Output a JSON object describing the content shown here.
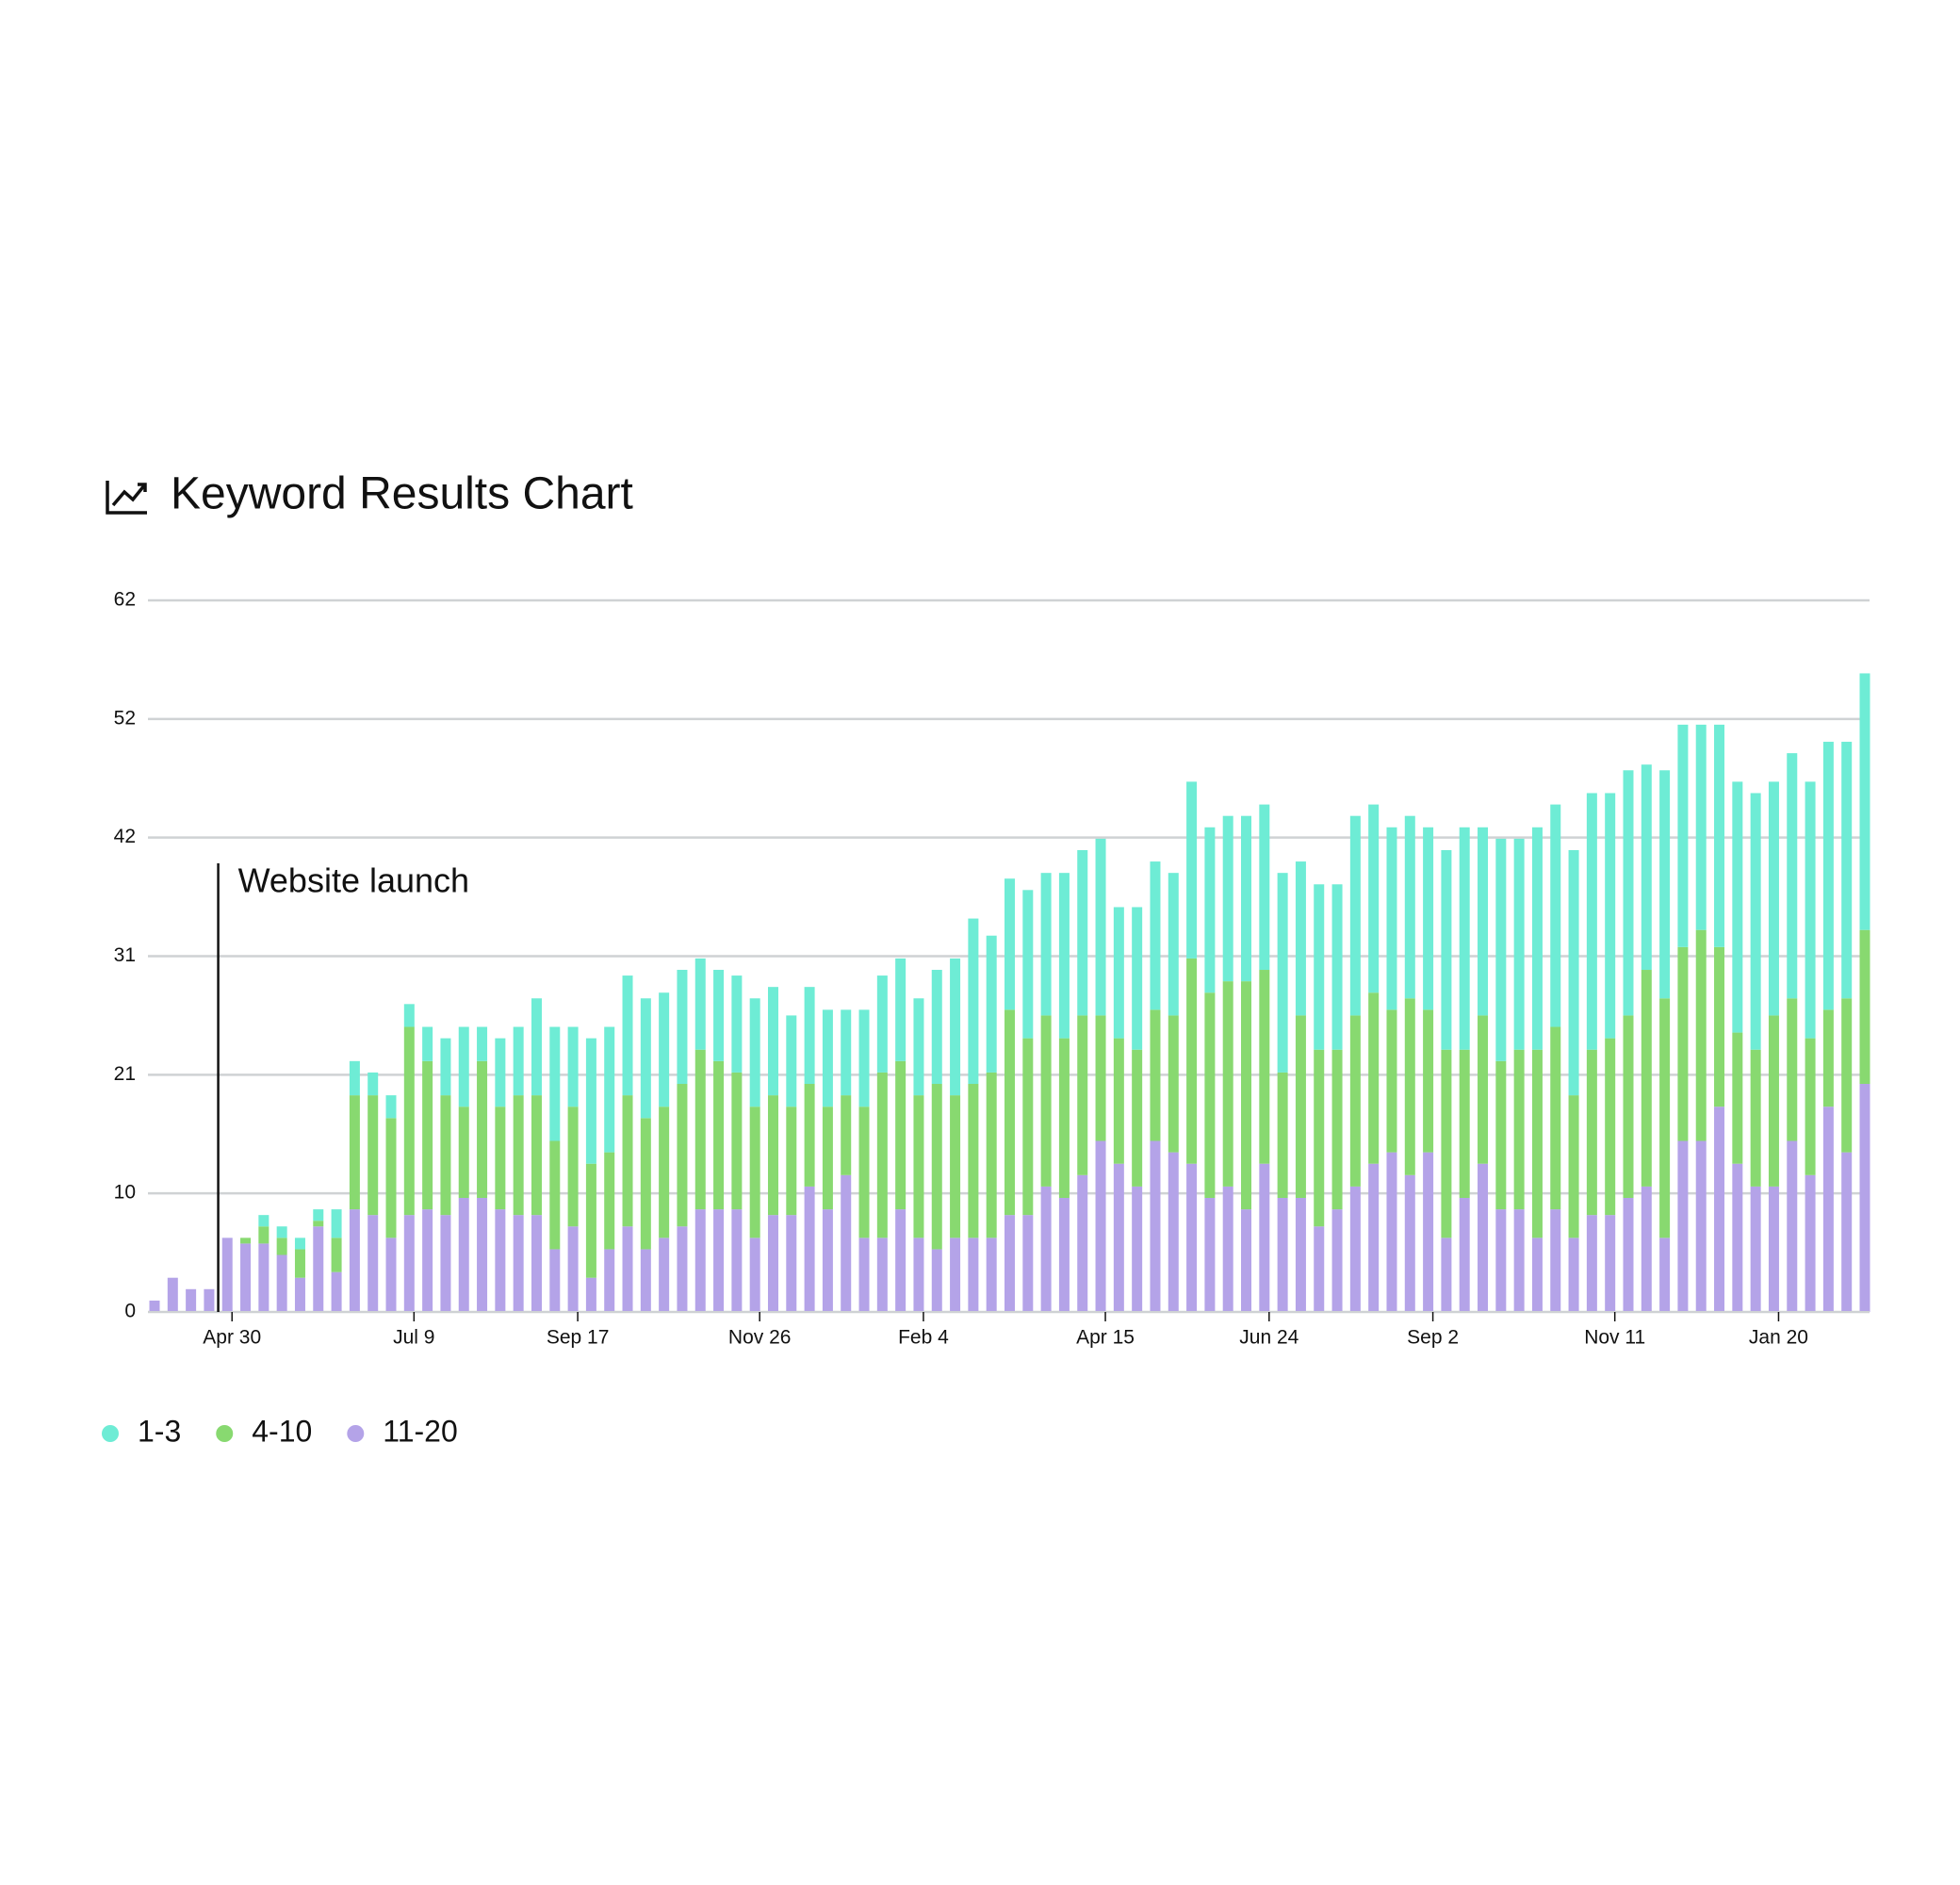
{
  "chart_data": {
    "type": "stacked_bar",
    "title": "Keyword Results Chart",
    "annotation": "Website launch",
    "categories": [
      null,
      null,
      null,
      null,
      "Apr 30",
      null,
      null,
      null,
      null,
      null,
      null,
      null,
      null,
      null,
      "Jul 9",
      null,
      null,
      null,
      null,
      null,
      null,
      null,
      null,
      "Sep 17",
      null,
      null,
      null,
      null,
      null,
      null,
      null,
      null,
      null,
      "Nov 26",
      null,
      null,
      null,
      null,
      null,
      null,
      null,
      null,
      "Feb 4",
      null,
      null,
      null,
      null,
      null,
      null,
      null,
      null,
      null,
      "Apr 15",
      null,
      null,
      null,
      null,
      null,
      null,
      null,
      null,
      "Jun 24",
      null,
      null,
      null,
      null,
      null,
      null,
      null,
      null,
      "Sep 2",
      null,
      null,
      null,
      null,
      null,
      null,
      null,
      null,
      null,
      "Nov 11",
      null,
      null,
      null,
      null,
      null,
      null,
      null,
      null,
      "Jan 20",
      null,
      null,
      null,
      null,
      null
    ],
    "series": [
      {
        "name": "1-3",
        "color": "#6eecd5",
        "values": [
          0,
          0,
          0,
          0,
          0,
          0,
          1,
          1,
          1,
          1,
          2.5,
          3,
          2,
          2,
          2,
          3,
          5,
          7,
          3,
          6,
          6,
          8.5,
          10,
          7,
          11,
          11,
          10.5,
          10.5,
          10,
          10,
          8,
          8,
          8.5,
          9.5,
          9.5,
          8,
          8.5,
          8.5,
          7.5,
          8.5,
          8.5,
          9,
          8.5,
          10,
          12,
          14.5,
          12,
          11.5,
          13,
          12.5,
          14.5,
          14.5,
          15.5,
          11.5,
          12.5,
          13,
          12.5,
          15.5,
          14.5,
          14.5,
          14.5,
          14.5,
          17.5,
          13.5,
          14.5,
          14.5,
          17.5,
          16.5,
          16,
          16,
          16,
          17.5,
          19.5,
          16.5,
          19.5,
          18.5,
          19.5,
          19.5,
          21.5,
          22.5,
          21.5,
          21.5,
          18,
          20,
          19.5,
          18,
          19.5,
          22,
          22.5,
          20.5,
          21.5,
          22.5,
          23.5,
          22.5,
          22.5
        ]
      },
      {
        "name": "4-10",
        "color": "#88d970",
        "values": [
          0,
          0,
          0,
          0,
          0,
          0.5,
          1.5,
          1.5,
          2.5,
          0.5,
          3,
          10,
          10.5,
          10.5,
          16.5,
          13,
          10.5,
          8,
          12,
          9,
          10.5,
          10.5,
          9.5,
          10.5,
          10,
          8.5,
          11.5,
          11.5,
          11.5,
          12.5,
          14,
          13,
          12,
          11.5,
          10.5,
          9.5,
          9,
          9,
          7,
          11.5,
          14.5,
          13,
          12.5,
          14.5,
          12.5,
          13.5,
          14.5,
          18,
          15.5,
          15,
          14,
          14,
          11,
          11,
          12,
          11.5,
          12,
          18,
          18,
          18,
          20,
          17,
          11,
          16,
          15.5,
          14,
          15,
          15,
          12.5,
          15.5,
          12.5,
          16.5,
          13,
          13,
          13,
          14,
          16.5,
          16,
          12.5,
          14.5,
          15.5,
          16,
          19,
          21,
          17,
          18.5,
          14,
          11.5,
          12,
          15,
          12.5,
          12,
          8.5,
          13.5,
          13.5
        ]
      },
      {
        "name": "11-20",
        "color": "#b4a3e8",
        "values": [
          1,
          3,
          2,
          2,
          6.5,
          6,
          6,
          5,
          3,
          7.5,
          3.5,
          9,
          8.5,
          6.5,
          8.5,
          9,
          8.5,
          10,
          10,
          9,
          8.5,
          8.5,
          5.5,
          7.5,
          3,
          5.5,
          7.5,
          5.5,
          6.5,
          7.5,
          9,
          9,
          9,
          6.5,
          8.5,
          8.5,
          11,
          9,
          12,
          6.5,
          6.5,
          9,
          6.5,
          5.5,
          6.5,
          6.5,
          6.5,
          8.5,
          8.5,
          11,
          10,
          12,
          15,
          13,
          11,
          15,
          14,
          13,
          10,
          11,
          9,
          13,
          10,
          10,
          7.5,
          9,
          11,
          13,
          14,
          12,
          14,
          6.5,
          10,
          13,
          9,
          9,
          6.5,
          9,
          6.5,
          8.5,
          8.5,
          10,
          11,
          6.5,
          15,
          15,
          18,
          13,
          11,
          11,
          15,
          12,
          18,
          14,
          20
        ]
      }
    ],
    "ylim": [
      0,
      62.4
    ],
    "yticks": [
      0,
      {
        "value": 10.4,
        "label": "10"
      },
      {
        "value": 20.8,
        "label": "21"
      },
      {
        "value": 31.2,
        "label": "31"
      },
      {
        "value": 41.6,
        "label": "42"
      },
      52,
      {
        "value": 62.4,
        "label": "62"
      }
    ],
    "grid": true
  }
}
